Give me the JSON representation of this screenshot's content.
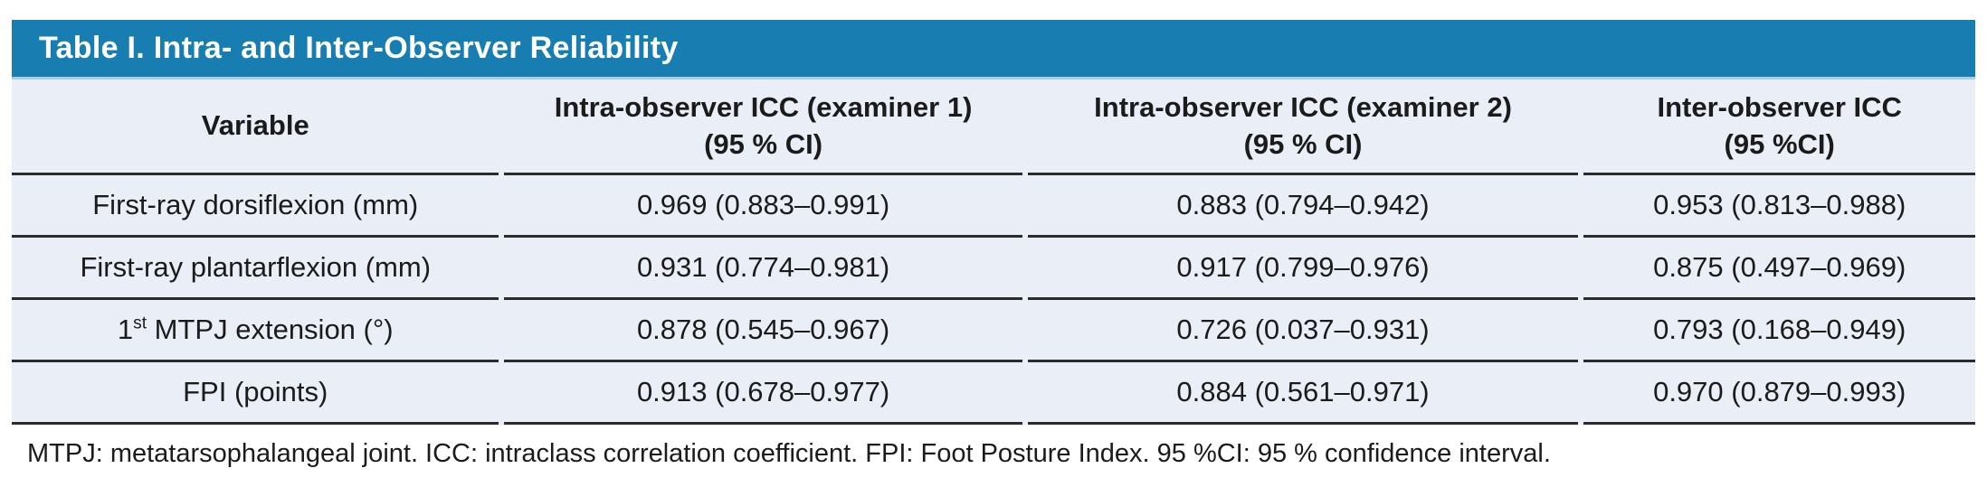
{
  "colors": {
    "title_bar_bg": "#187DB1",
    "row_bg": "#EAEEF6",
    "rule_line": "#2B2B2B",
    "title_text": "#FFFFFF"
  },
  "table": {
    "title": "Table I. Intra- and Inter-Observer Reliability",
    "columns": [
      {
        "line1": "Variable",
        "line2": ""
      },
      {
        "line1": "Intra-observer ICC (examiner 1)",
        "line2": "(95 % CI)"
      },
      {
        "line1": "Intra-observer ICC (examiner 2)",
        "line2": "(95 % CI)"
      },
      {
        "line1": "Inter-observer ICC",
        "line2": "(95 %CI)"
      }
    ],
    "rows": [
      {
        "variable_prefix": "First-ray dorsiflexion (mm)",
        "variable_sup": "",
        "variable_rest": "",
        "values": [
          "0.969 (0.883–0.991)",
          "0.883 (0.794–0.942)",
          "0.953 (0.813–0.988)"
        ]
      },
      {
        "variable_prefix": "First-ray plantarflexion (mm)",
        "variable_sup": "",
        "variable_rest": "",
        "values": [
          "0.931 (0.774–0.981)",
          "0.917 (0.799–0.976)",
          "0.875 (0.497–0.969)"
        ]
      },
      {
        "variable_prefix": "1",
        "variable_sup": "st",
        "variable_rest": " MTPJ extension (°)",
        "values": [
          "0.878 (0.545–0.967)",
          "0.726 (0.037–0.931)",
          "0.793 (0.168–0.949)"
        ]
      },
      {
        "variable_prefix": "FPI (points)",
        "variable_sup": "",
        "variable_rest": "",
        "values": [
          "0.913 (0.678–0.977)",
          "0.884 (0.561–0.971)",
          "0.970 (0.879–0.993)"
        ]
      }
    ],
    "footnote": "MTPJ: metatarsophalangeal joint. ICC: intraclass correlation coefficient. FPI: Foot Posture Index. 95 %CI: 95 % confidence interval."
  }
}
